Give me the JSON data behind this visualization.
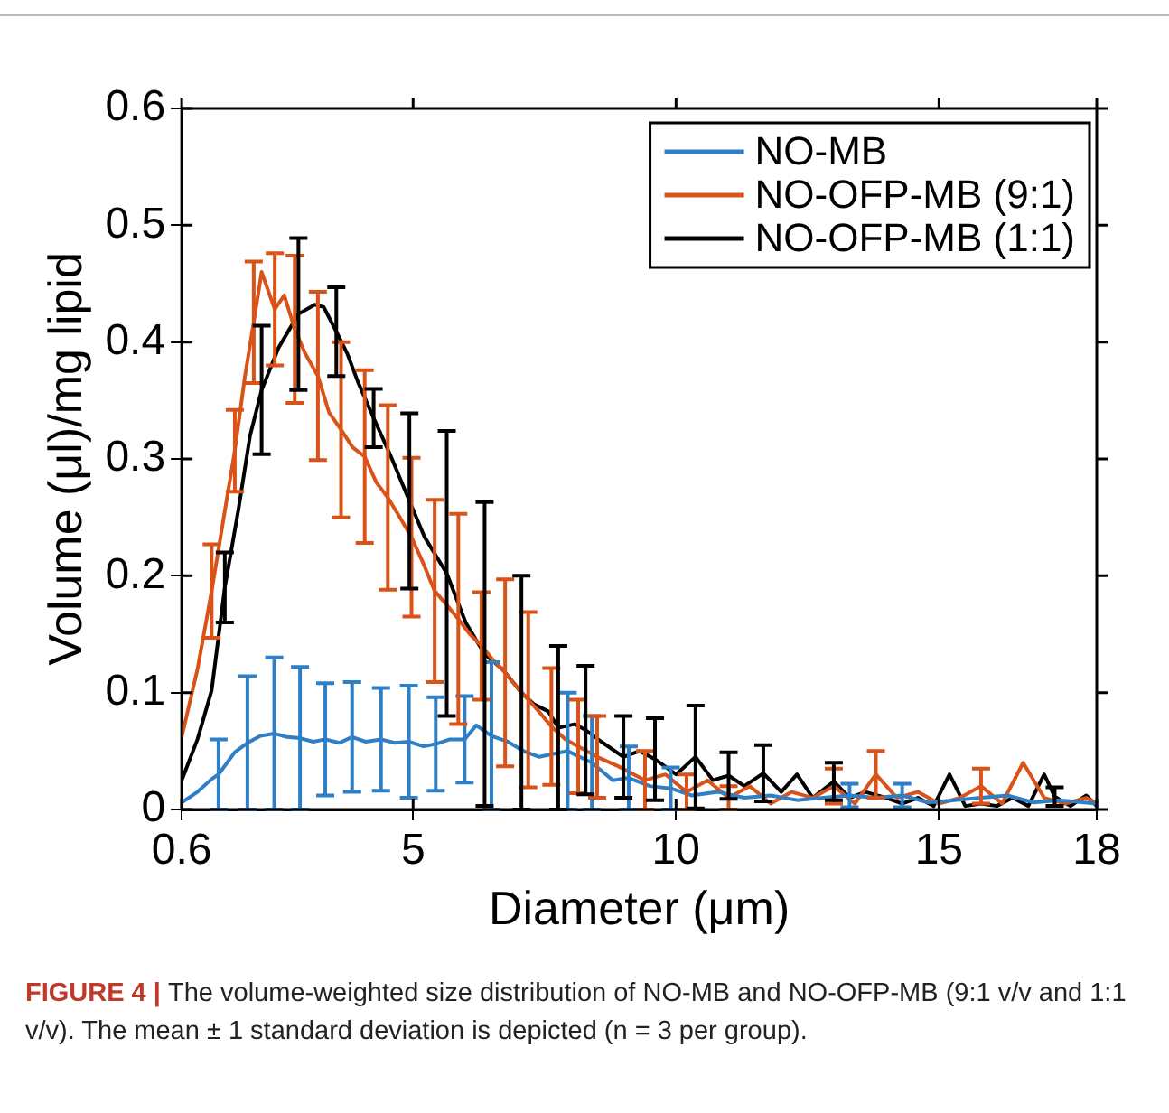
{
  "chart_data": {
    "type": "line",
    "xlabel": "Diameter (μm)",
    "ylabel": "Volume (μl)/mg lipid",
    "xlim": [
      0.6,
      18
    ],
    "xticks": [
      0.6,
      5,
      10,
      15,
      18
    ],
    "ylim": [
      0,
      0.6
    ],
    "yticks": [
      0,
      0.1,
      0.2,
      0.3,
      0.4,
      0.5,
      0.6
    ],
    "grid": false,
    "legend": "top right",
    "marker": "none",
    "line_style": "solid",
    "annotations": [
      "FIGURE 4 |",
      "The volume-weighted size distribution of NO-MB and NO-OFP-MB (9:1 v/v and 1:1 v/v). The mean ± 1 standard deviation is depicted (n = 3 per group)."
    ],
    "series": [
      {
        "name": "NO-MB",
        "color": "#2f7fc6",
        "x": [
          0.6,
          0.9,
          1.17,
          1.3,
          1.61,
          1.85,
          2.1,
          2.36,
          2.6,
          2.85,
          3.1,
          3.33,
          3.6,
          3.84,
          4.1,
          4.39,
          4.65,
          4.92,
          5.2,
          5.43,
          5.7,
          5.98,
          6.2,
          6.49,
          6.8,
          7.1,
          7.4,
          7.94,
          8.4,
          8.8,
          9.1,
          9.5,
          9.9,
          10.3,
          10.8,
          11.3,
          11.8,
          12.3,
          12.8,
          13.3,
          13.8,
          14.3,
          14.8,
          15.3,
          15.8,
          16.3,
          16.8,
          17.3,
          18
        ],
        "values": [
          0.006,
          0.015,
          0.026,
          0.03,
          0.049,
          0.057,
          0.063,
          0.065,
          0.062,
          0.061,
          0.058,
          0.06,
          0.057,
          0.062,
          0.058,
          0.06,
          0.057,
          0.058,
          0.054,
          0.056,
          0.06,
          0.06,
          0.072,
          0.063,
          0.058,
          0.05,
          0.045,
          0.05,
          0.04,
          0.025,
          0.027,
          0.02,
          0.018,
          0.012,
          0.015,
          0.01,
          0.012,
          0.008,
          0.01,
          0.012,
          0.01,
          0.012,
          0.006,
          0.008,
          0.01,
          0.012,
          0.006,
          0.008,
          0.005
        ],
        "errors": [
          null,
          null,
          null,
          0.03,
          null,
          0.057,
          null,
          0.065,
          null,
          0.061,
          null,
          0.048,
          null,
          0.047,
          null,
          0.044,
          null,
          0.048,
          null,
          0.04,
          null,
          0.037,
          null,
          0.063,
          null,
          null,
          null,
          0.05,
          0.04,
          null,
          0.027,
          null,
          0.018,
          null,
          null,
          null,
          null,
          null,
          null,
          0.01,
          null,
          0.01,
          null,
          null,
          null,
          null,
          null,
          null,
          null
        ]
      },
      {
        "name": "NO-OFP-MB (9:1)",
        "color": "#d95319",
        "x": [
          0.6,
          0.9,
          1.17,
          1.4,
          1.61,
          1.8,
          1.97,
          2.12,
          2.37,
          2.55,
          2.75,
          2.95,
          3.19,
          3.4,
          3.63,
          3.85,
          4.08,
          4.3,
          4.52,
          4.75,
          4.97,
          5.2,
          5.41,
          5.64,
          5.86,
          6.08,
          6.3,
          6.52,
          6.75,
          6.97,
          7.19,
          7.41,
          7.63,
          7.9,
          8.14,
          8.5,
          8.9,
          9.41,
          9.8,
          10.2,
          10.6,
          11.0,
          11.4,
          11.8,
          12.2,
          12.6,
          13.0,
          13.4,
          13.8,
          14.2,
          14.6,
          15.0,
          15.4,
          15.8,
          16.2,
          16.6,
          17.0,
          17.4,
          17.8,
          18
        ],
        "values": [
          0.062,
          0.12,
          0.187,
          0.25,
          0.307,
          0.37,
          0.417,
          0.46,
          0.428,
          0.44,
          0.411,
          0.39,
          0.371,
          0.34,
          0.325,
          0.31,
          0.302,
          0.28,
          0.267,
          0.25,
          0.233,
          0.21,
          0.187,
          0.175,
          0.163,
          0.15,
          0.14,
          0.128,
          0.117,
          0.105,
          0.094,
          0.083,
          0.071,
          0.06,
          0.054,
          0.045,
          0.037,
          0.025,
          0.03,
          0.015,
          0.025,
          0.01,
          0.02,
          0.005,
          0.015,
          0.01,
          0.02,
          0.005,
          0.03,
          0.01,
          0.015,
          0.005,
          0.01,
          0.02,
          0.005,
          0.04,
          0.01,
          0.005,
          0.01,
          0.005
        ],
        "errors": [
          null,
          null,
          0.04,
          null,
          0.035,
          null,
          0.052,
          null,
          0.048,
          null,
          0.063,
          null,
          0.072,
          null,
          0.075,
          null,
          0.074,
          null,
          0.079,
          null,
          0.068,
          null,
          0.078,
          null,
          0.09,
          null,
          0.046,
          null,
          0.08,
          null,
          0.075,
          null,
          0.05,
          null,
          0.04,
          0.035,
          null,
          0.025,
          null,
          0.015,
          null,
          0.01,
          null,
          null,
          null,
          null,
          0.015,
          null,
          0.02,
          null,
          null,
          null,
          null,
          0.015,
          null,
          null,
          null,
          null,
          null,
          null
        ]
      },
      {
        "name": "NO-OFP-MB (1:1)",
        "color": "#000000",
        "x": [
          0.6,
          0.9,
          1.17,
          1.42,
          1.68,
          1.9,
          2.12,
          2.44,
          2.82,
          3.13,
          3.3,
          3.54,
          3.75,
          3.95,
          4.25,
          4.58,
          4.93,
          5.22,
          5.64,
          6.0,
          6.36,
          6.7,
          7.06,
          7.3,
          7.57,
          7.76,
          8.07,
          8.28,
          8.58,
          9.0,
          9.3,
          9.6,
          10.0,
          10.37,
          10.7,
          11.0,
          11.3,
          11.66,
          12.0,
          12.3,
          12.6,
          13.0,
          13.3,
          13.6,
          14.0,
          14.3,
          14.6,
          14.9,
          15.2,
          15.5,
          15.8,
          16.1,
          16.4,
          16.7,
          17.0,
          17.2,
          17.5,
          17.8,
          18
        ],
        "values": [
          0.025,
          0.06,
          0.102,
          0.19,
          0.257,
          0.32,
          0.359,
          0.395,
          0.424,
          0.432,
          0.43,
          0.409,
          0.39,
          0.366,
          0.335,
          0.302,
          0.264,
          0.233,
          0.202,
          0.16,
          0.133,
          0.12,
          0.1,
          0.09,
          0.084,
          0.07,
          0.073,
          0.068,
          0.058,
          0.045,
          0.05,
          0.043,
          0.03,
          0.045,
          0.025,
          0.029,
          0.02,
          0.031,
          0.015,
          0.03,
          0.01,
          0.024,
          0.01,
          0.015,
          0.01,
          0.005,
          0.01,
          0.003,
          0.03,
          0.003,
          0.005,
          0.003,
          0.01,
          0.003,
          0.03,
          0.011,
          0.003,
          0.012,
          0.003
        ],
        "errors": [
          null,
          null,
          null,
          0.03,
          null,
          null,
          0.055,
          null,
          0.065,
          null,
          null,
          0.038,
          null,
          null,
          0.025,
          null,
          0.075,
          null,
          0.122,
          null,
          0.13,
          null,
          0.1,
          null,
          null,
          0.07,
          null,
          0.055,
          null,
          0.035,
          null,
          0.035,
          null,
          0.044,
          null,
          0.02,
          null,
          0.024,
          null,
          null,
          null,
          0.016,
          null,
          null,
          null,
          null,
          null,
          null,
          null,
          null,
          null,
          null,
          null,
          null,
          null,
          0.008,
          null,
          null,
          null
        ]
      }
    ]
  }
}
